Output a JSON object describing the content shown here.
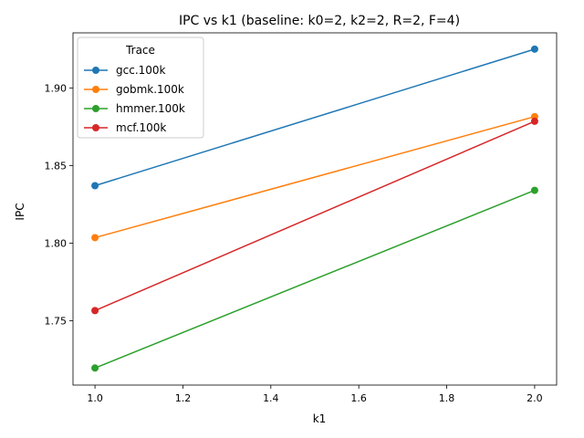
{
  "chart_data": {
    "type": "line",
    "title": "IPC vs k1  (baseline: k0=2, k2=2, R=2, F=4)",
    "xlabel": "k1",
    "ylabel": "IPC",
    "x": [
      1.0,
      2.0
    ],
    "xlim": [
      0.95,
      2.05
    ],
    "ylim": [
      1.7085,
      1.9355
    ],
    "xticks": [
      1.0,
      1.2,
      1.4,
      1.6,
      1.8,
      2.0
    ],
    "xtick_labels": [
      "1.0",
      "1.2",
      "1.4",
      "1.6",
      "1.8",
      "2.0"
    ],
    "yticks": [
      1.75,
      1.8,
      1.85,
      1.9
    ],
    "ytick_labels": [
      "1.75",
      "1.80",
      "1.85",
      "1.90"
    ],
    "grid": false,
    "legend": {
      "title": "Trace",
      "placement": "top-left"
    },
    "series": [
      {
        "name": "gcc.100k",
        "color": "#1f77b4",
        "values": [
          1.837,
          1.925
        ]
      },
      {
        "name": "gobmk.100k",
        "color": "#ff7f0e",
        "values": [
          1.8035,
          1.8815
        ]
      },
      {
        "name": "hmmer.100k",
        "color": "#2ca02c",
        "values": [
          1.7195,
          1.834
        ]
      },
      {
        "name": "mcf.100k",
        "color": "#d62728",
        "values": [
          1.7565,
          1.8785
        ]
      }
    ]
  }
}
